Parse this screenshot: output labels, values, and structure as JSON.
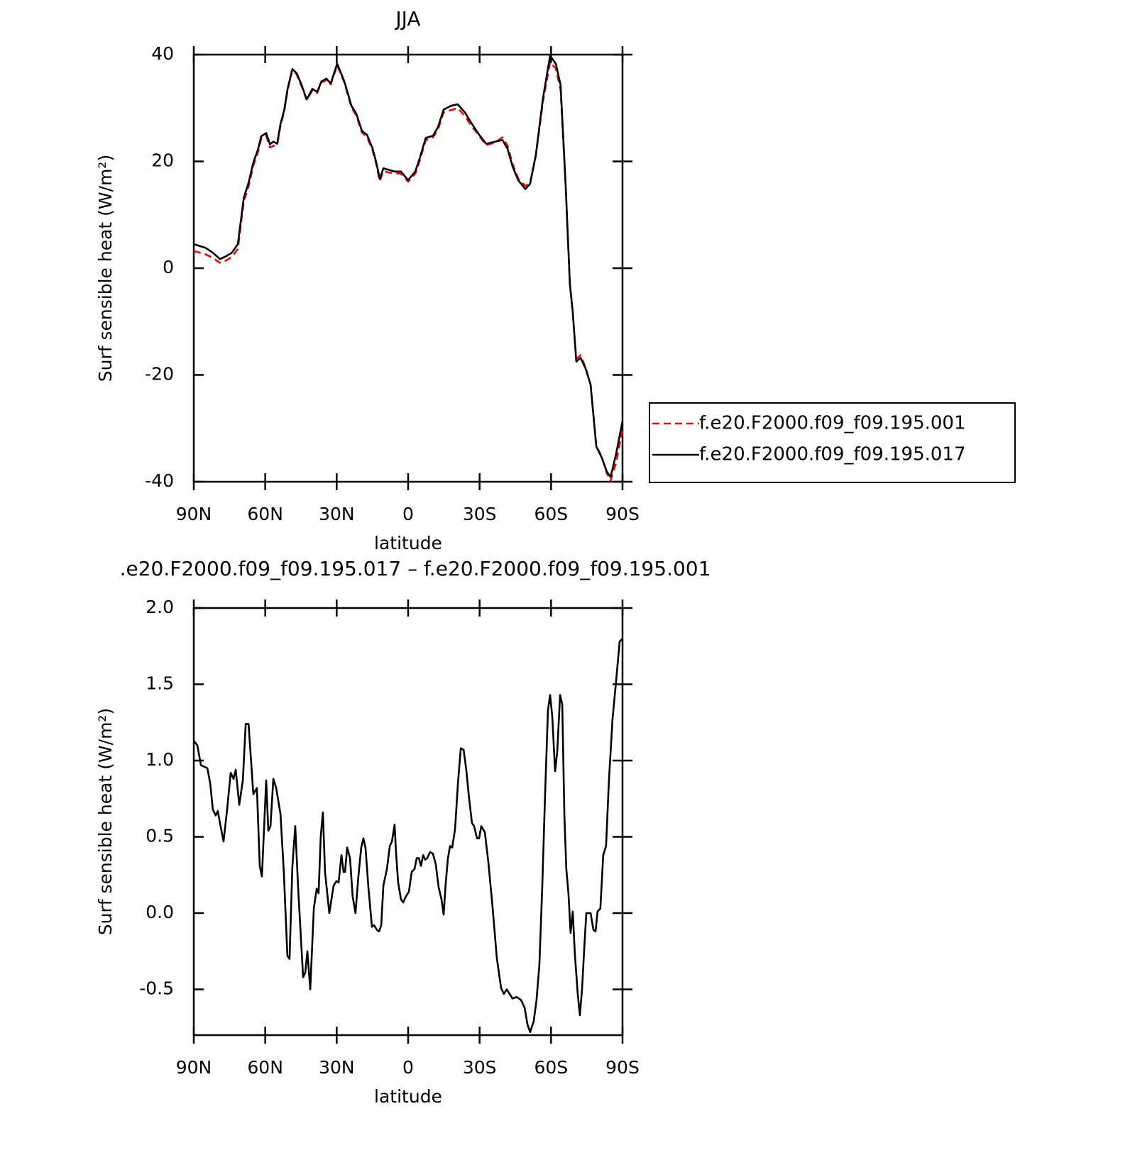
{
  "chart_data": [
    {
      "type": "line",
      "title": "JJA",
      "x_label": "latitude",
      "y_label": "Surf sensible heat (W/m²)",
      "xlim": [
        90,
        -90
      ],
      "ylim": [
        -40,
        40
      ],
      "xticks": [
        {
          "value": 90,
          "label": "90N"
        },
        {
          "value": 60,
          "label": "60N"
        },
        {
          "value": 30,
          "label": "30N"
        },
        0,
        {
          "value": -30,
          "label": "30S"
        },
        {
          "value": -60,
          "label": "60S"
        },
        {
          "value": -90,
          "label": "90S"
        }
      ],
      "yticks": [
        40,
        20,
        0,
        -20,
        -40
      ],
      "legend": "right",
      "x": [
        90,
        85,
        82,
        79,
        76.6,
        74,
        71.5,
        69,
        67,
        65,
        63,
        61.7,
        59.6,
        58,
        56.6,
        55,
        53.6,
        52,
        50.6,
        48.6,
        46.8,
        44.7,
        42.6,
        40.2,
        38.2,
        36.4,
        34.3,
        32.5,
        29.8,
        26.8,
        23.8,
        21.8,
        19.4,
        17.3,
        14.9,
        13.4,
        11.9,
        10.4,
        8,
        5.7,
        3,
        0,
        -3,
        -5,
        -7.4,
        -10.4,
        -12.5,
        -14.9,
        -17.9,
        -20.8,
        -23.8,
        -26.8,
        -29.8,
        -32.8,
        -36.6,
        -39.6,
        -41.7,
        -43.8,
        -46.2,
        -49.2,
        -51.2,
        -53.6,
        -56.6,
        -59.6,
        -62,
        -64,
        -66.1,
        -67.9,
        -69.1,
        -70.6,
        -72.4,
        -74.5,
        -76.6,
        -79,
        -81.3,
        -83.4,
        -85,
        -87.3,
        -90
      ],
      "series": [
        {
          "name": "f.e20.F2000.f09_f09.195.001",
          "color": "#ff0000",
          "dash": true,
          "values": [
            3.2,
            2.6,
            1.9,
            1.0,
            1.4,
            2.1,
            3.6,
            12.5,
            15.3,
            19.2,
            21.8,
            24.2,
            24.8,
            22.6,
            22.9,
            23.0,
            26.6,
            29.4,
            33.4,
            37.2,
            36.3,
            34.0,
            31.5,
            33.3,
            32.8,
            34.8,
            35.2,
            34.4,
            38.0,
            34.8,
            30.1,
            28.6,
            25.4,
            24.6,
            22.0,
            19.5,
            16.3,
            18.2,
            17.9,
            17.8,
            17.7,
            16.2,
            17.7,
            20.3,
            24.0,
            24.5,
            25.9,
            29.2,
            29.6,
            30.0,
            28.5,
            26.5,
            24.8,
            23.0,
            23.6,
            24.5,
            23.0,
            19.6,
            16.8,
            15.4,
            16.0,
            21.0,
            31.2,
            38.6,
            37.4,
            33.4,
            15.6,
            -3.0,
            -8.4,
            -17.0,
            -16.3,
            -18.6,
            -21.9,
            -33.3,
            -35.3,
            -38.4,
            -39.8,
            -36.5,
            -30.2
          ]
        },
        {
          "name": "f.e20.F2000.f09_f09.195.017",
          "color": "#000000",
          "dash": false,
          "values": [
            4.5,
            3.8,
            2.9,
            1.7,
            2.2,
            2.9,
            4.5,
            13.2,
            16,
            19.8,
            22.3,
            24.7,
            25.3,
            23.2,
            23.7,
            23.3,
            27,
            29.7,
            33.6,
            37.3,
            36.5,
            34.3,
            31.6,
            33.6,
            33,
            35,
            35.5,
            34.6,
            38.3,
            35,
            30.4,
            29,
            25.7,
            25,
            22.4,
            19.8,
            16.7,
            18.7,
            18.4,
            18.1,
            18.1,
            16.5,
            18.1,
            20.8,
            24.4,
            24.8,
            26.4,
            29.7,
            30.4,
            30.7,
            29.2,
            27,
            25,
            23.3,
            23.7,
            24,
            22.4,
            19.1,
            16.5,
            14.8,
            15.8,
            21.2,
            31.8,
            39.8,
            38.3,
            34.3,
            15.8,
            -2.9,
            -8.2,
            -17.5,
            -16.8,
            -18.8,
            -21.8,
            -33.4,
            -35.5,
            -38.1,
            -39.1,
            -34.8,
            -28.6
          ]
        }
      ]
    },
    {
      "type": "line",
      "title": ".e20.F2000.f09_f09.195.017 – f.e20.F2000.f09_f09.195.001",
      "x_label": "latitude",
      "y_label": "Surf sensible heat (W/m²)",
      "xlim": [
        90,
        -90
      ],
      "ylim": [
        -0.8,
        2.0
      ],
      "xticks": [
        {
          "value": 90,
          "label": "90N"
        },
        {
          "value": 60,
          "label": "60N"
        },
        {
          "value": 30,
          "label": "30N"
        },
        0,
        {
          "value": -30,
          "label": "30S"
        },
        {
          "value": -60,
          "label": "60S"
        },
        {
          "value": -90,
          "label": "90S"
        }
      ],
      "yticks": [
        {
          "value": 2,
          "label": "2.0"
        },
        1.5,
        {
          "value": 1,
          "label": "1.0"
        },
        0.5,
        {
          "value": 0,
          "label": "0.0"
        },
        -0.5
      ],
      "x": [
        90,
        88.5,
        87,
        84.3,
        83.1,
        82,
        80.8,
        79.9,
        79,
        77.5,
        76,
        74.5,
        73.3,
        72.4,
        70.9,
        69.4,
        68.2,
        67,
        65,
        63.5,
        62.3,
        61.4,
        59.6,
        58.7,
        57.8,
        56.6,
        55.4,
        53.6,
        52.2,
        50.7,
        49.8,
        48.6,
        47.4,
        46.2,
        44.1,
        43.2,
        42.3,
        41.1,
        39.6,
        38.4,
        37.6,
        36.7,
        35.8,
        34.9,
        33.1,
        31.3,
        30.1,
        29.2,
        28,
        27.1,
        26.5,
        25.6,
        24.4,
        23.3,
        22.1,
        20.9,
        19.7,
        18.8,
        17.9,
        16.7,
        15.2,
        14.3,
        13.1,
        12.2,
        11.3,
        10.4,
        8.9,
        7.7,
        6.8,
        5.7,
        5.1,
        4.2,
        3,
        2.1,
        0.9,
        -0.3,
        -1.5,
        -2.7,
        -3.6,
        -4.5,
        -5.4,
        -6.3,
        -7.2,
        -8,
        -9.2,
        -10.4,
        -11.6,
        -12.8,
        -14,
        -14.9,
        -15.8,
        -16.7,
        -17.6,
        -18.5,
        -19.7,
        -20.9,
        -22.1,
        -23.3,
        -24.4,
        -25.6,
        -26.8,
        -27.7,
        -28.9,
        -29.8,
        -30.7,
        -32.2,
        -33.7,
        -35.5,
        -37.2,
        -39,
        -40.2,
        -41.4,
        -42.6,
        -43.8,
        -45.6,
        -47.4,
        -48.9,
        -50.1,
        -51.2,
        -52.7,
        -53.9,
        -55.1,
        -56.3,
        -57.5,
        -58.7,
        -59.6,
        -60.5,
        -61.7,
        -62.6,
        -63.8,
        -64.7,
        -65.6,
        -66.4,
        -67.3,
        -68.2,
        -69.1,
        -70,
        -71.2,
        -72.1,
        -73,
        -73.9,
        -74.8,
        -76.6,
        -77.8,
        -78.7,
        -79.5,
        -80.7,
        -81.9,
        -83.1,
        -84.3,
        -85.8,
        -87.3,
        -88.8,
        -90
      ],
      "series": [
        {
          "name": "f.e20.F2000.f09_f09.195.017 – f.e20.F2000.f09_f09.195.001",
          "color": "#000000",
          "dash": false,
          "values": [
            1.13,
            1.1,
            0.97,
            0.95,
            0.85,
            0.68,
            0.64,
            0.67,
            0.59,
            0.47,
            0.68,
            0.92,
            0.88,
            0.94,
            0.71,
            0.87,
            1.24,
            1.24,
            0.78,
            0.82,
            0.31,
            0.24,
            0.87,
            0.54,
            0.57,
            0.88,
            0.82,
            0.65,
            0.27,
            -0.28,
            -0.3,
            0.31,
            0.57,
            0.17,
            -0.42,
            -0.39,
            -0.25,
            -0.5,
            0.03,
            0.16,
            0.13,
            0.5,
            0.66,
            0.27,
            0,
            0.18,
            0.21,
            0.2,
            0.38,
            0.27,
            0.27,
            0.43,
            0.36,
            0.11,
            0,
            0.24,
            0.43,
            0.49,
            0.43,
            0.17,
            -0.09,
            -0.08,
            -0.11,
            -0.12,
            -0.08,
            0.18,
            0.29,
            0.44,
            0.47,
            0.58,
            0.4,
            0.2,
            0.09,
            0.07,
            0.11,
            0.14,
            0.27,
            0.29,
            0.36,
            0.36,
            0.31,
            0.38,
            0.35,
            0.36,
            0.4,
            0.39,
            0.32,
            0.17,
            0.09,
            -0.01,
            0.2,
            0.36,
            0.44,
            0.43,
            0.55,
            0.85,
            1.08,
            1.07,
            0.94,
            0.75,
            0.59,
            0.57,
            0.49,
            0.49,
            0.57,
            0.53,
            0.33,
            0.03,
            -0.29,
            -0.49,
            -0.53,
            -0.5,
            -0.53,
            -0.56,
            -0.55,
            -0.57,
            -0.62,
            -0.73,
            -0.78,
            -0.71,
            -0.57,
            -0.34,
            0.17,
            0.78,
            1.33,
            1.43,
            1.29,
            0.93,
            1.06,
            1.43,
            1.37,
            0.64,
            0.29,
            0.13,
            -0.13,
            0.01,
            -0.27,
            -0.53,
            -0.67,
            -0.5,
            -0.24,
            0,
            0,
            -0.11,
            -0.12,
            0.01,
            0.03,
            0.38,
            0.44,
            0.87,
            1.27,
            1.52,
            1.78,
            1.8
          ]
        }
      ]
    }
  ]
}
